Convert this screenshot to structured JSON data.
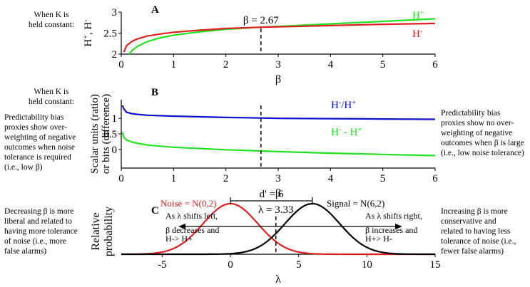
{
  "notes": {
    "a_left": "When K is\nheld constant:",
    "b_left_top": "When K is\nheld constant:",
    "b_left_bottom": "Predictability bias\nproxies show over-\nweighting of negative\noutcomes when noise\ntolerance is required\n(i.e., low β)",
    "b_right": "Predictability bias\nproxies show no over-\nweighting of negative\noutcomes when β is large\n(i.e., low noise tolerance)",
    "c_left": "Decreasing β is more\nliberal and related to\nhaving more tolerance\nof noise (i.e., more\nfalse alarms)",
    "c_right": "Increasing β is more\nconservative and\nrelated to having less\ntolerance of noise (i.e.,\nfewer false alarms)"
  },
  "colors": {
    "green": "#22e022",
    "red": "#e02020",
    "blue": "#1010d0",
    "black": "#000000"
  },
  "chart_data": [
    {
      "type": "line",
      "panel_label": "A",
      "xlabel": "β",
      "ylabel_parts": [
        "H",
        "+",
        ", H",
        "-"
      ],
      "xlim": [
        0,
        6
      ],
      "ylim": [
        2,
        3
      ],
      "xticks": [
        "0",
        "1",
        "2",
        "3",
        "4",
        "5",
        "6"
      ],
      "yticks": [
        "2",
        "2.5",
        "3"
      ],
      "marker": {
        "x": 2.67,
        "label": "β = 2.67"
      },
      "series": [
        {
          "name_parts": [
            "H",
            "+"
          ],
          "color": "#22e022",
          "x": [
            0.15,
            0.2,
            0.3,
            0.5,
            0.75,
            1,
            1.5,
            2,
            2.67,
            3,
            4,
            5,
            6
          ],
          "y": [
            2.0,
            2.08,
            2.18,
            2.3,
            2.39,
            2.45,
            2.53,
            2.59,
            2.64,
            2.66,
            2.72,
            2.78,
            2.84
          ]
        },
        {
          "name_parts": [
            "H",
            "-"
          ],
          "color": "#e02020",
          "x": [
            0.05,
            0.1,
            0.2,
            0.3,
            0.5,
            0.75,
            1,
            1.5,
            2,
            2.67,
            3,
            4,
            5,
            6
          ],
          "y": [
            2.05,
            2.2,
            2.3,
            2.36,
            2.43,
            2.48,
            2.52,
            2.57,
            2.61,
            2.64,
            2.65,
            2.68,
            2.71,
            2.73
          ]
        }
      ]
    },
    {
      "type": "line",
      "panel_label": "B",
      "xlabel": "β",
      "ylabel_lines": [
        "Scalar units (ratio)",
        "or bits (difference)"
      ],
      "xlim": [
        0,
        6
      ],
      "ylim": [
        -0.6,
        1.6
      ],
      "xticks": [
        "0",
        "1",
        "2",
        "3",
        "4",
        "5",
        "6"
      ],
      "yticks": [
        "0",
        "0.5",
        "1"
      ],
      "marker": {
        "x": 2.67
      },
      "series": [
        {
          "name_parts": [
            "H",
            "-",
            "/H",
            "+"
          ],
          "color": "#1010d0",
          "x": [
            0.02,
            0.05,
            0.1,
            0.2,
            0.3,
            0.5,
            1,
            2,
            2.67,
            3,
            4,
            5,
            6
          ],
          "y": [
            1.42,
            1.3,
            1.2,
            1.15,
            1.13,
            1.1,
            1.07,
            1.03,
            1.01,
            1.0,
            0.99,
            0.98,
            0.97
          ]
        },
        {
          "name_parts": [
            "H",
            "-",
            " - H",
            "+"
          ],
          "color": "#22e022",
          "x": [
            0.02,
            0.05,
            0.1,
            0.2,
            0.3,
            0.5,
            1,
            2,
            2.67,
            3,
            4,
            5,
            6
          ],
          "y": [
            0.55,
            0.38,
            0.3,
            0.24,
            0.2,
            0.14,
            0.07,
            -0.01,
            -0.05,
            -0.07,
            -0.12,
            -0.16,
            -0.2
          ]
        }
      ]
    },
    {
      "type": "line",
      "panel_label": "C",
      "xlabel": "λ",
      "ylabel_lines": [
        "Relative",
        "probability"
      ],
      "xlim": [
        -8,
        15
      ],
      "xticks": [
        "-5",
        "0",
        "5",
        "10",
        "15"
      ],
      "xtick_values": [
        -5,
        0,
        5,
        10,
        15
      ],
      "marker": {
        "x": 3.33,
        "label": "λ = 3.33"
      },
      "dprime": {
        "from": 0,
        "to": 6,
        "label": "d' = 6"
      },
      "arrow_left": [
        "As λ shifts left,",
        "β decreases and",
        "H-> H+"
      ],
      "arrow_right": [
        "As λ shifts right,",
        "β increases and",
        "H+> H-"
      ],
      "series": [
        {
          "name": "Noise = N(0,2)",
          "color": "#e02020",
          "mean": 0,
          "sd": 2
        },
        {
          "name": "Signal = N(6,2)",
          "color": "#000000",
          "mean": 6,
          "sd": 2
        }
      ]
    }
  ]
}
